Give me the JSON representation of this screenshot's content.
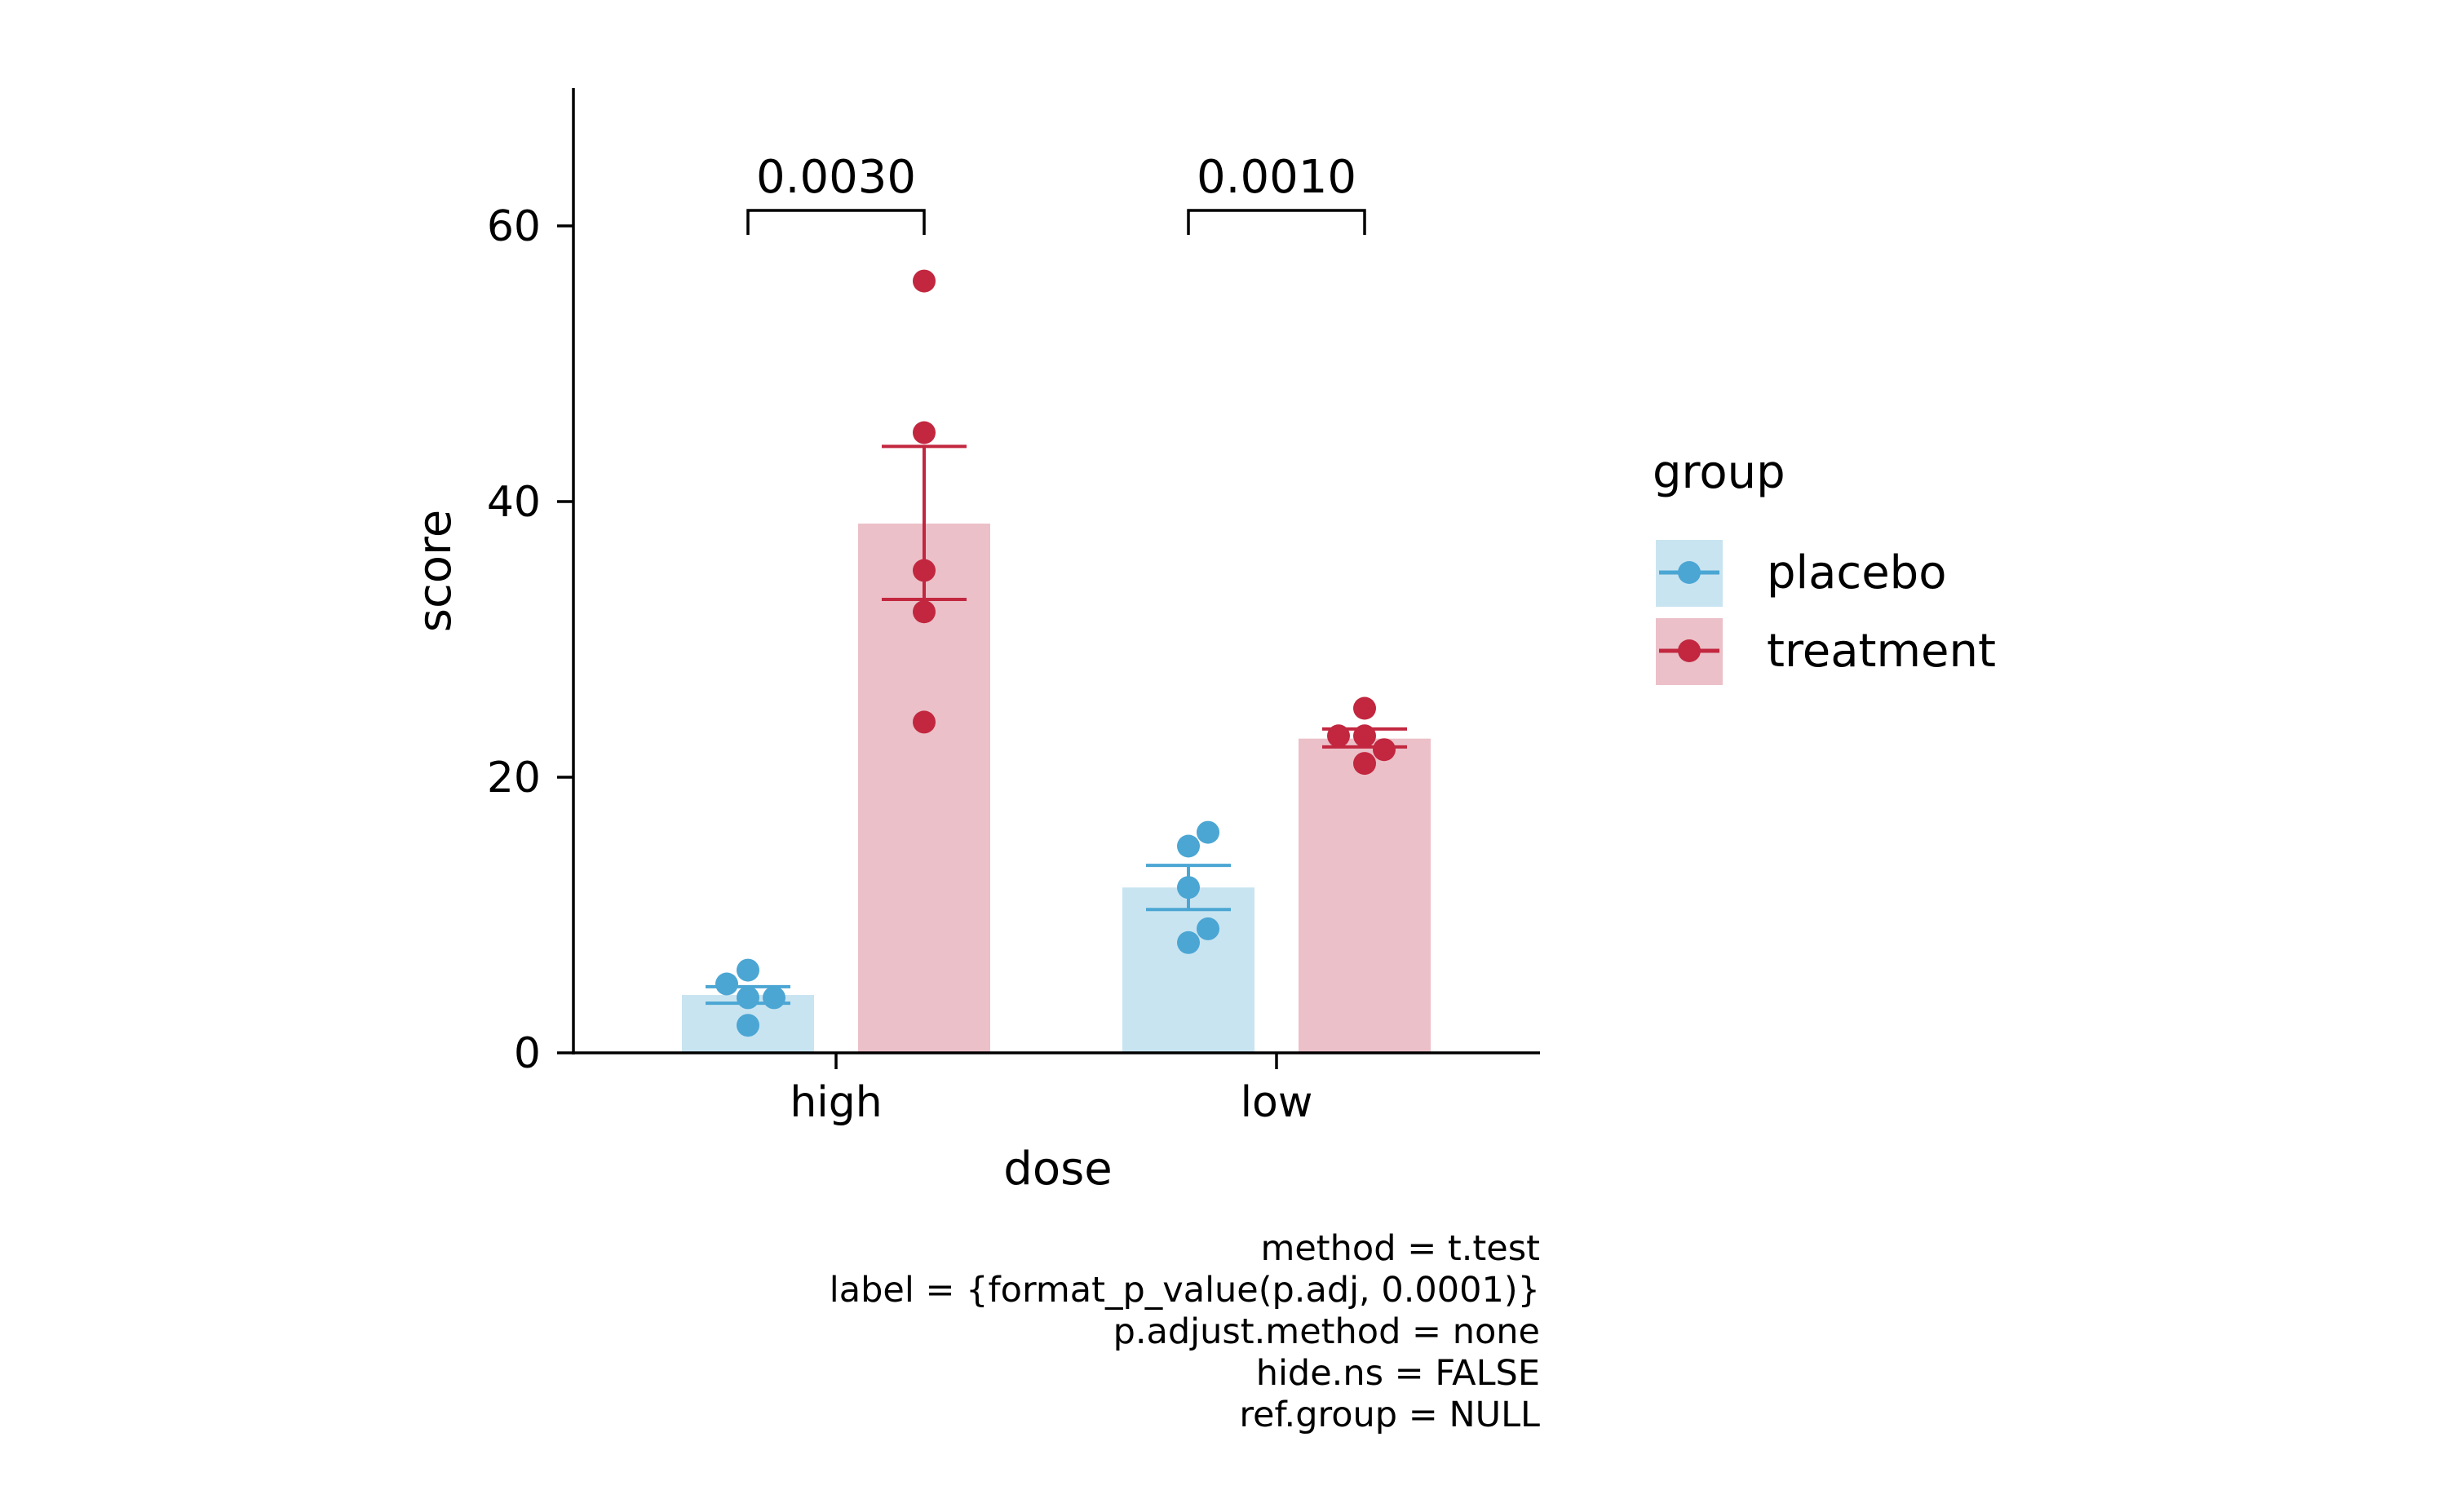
{
  "chart_data": {
    "type": "bar",
    "xlabel": "dose",
    "ylabel": "score",
    "ylim": [
      0,
      70
    ],
    "yticks": [
      0,
      20,
      40,
      60
    ],
    "categories": [
      "high",
      "low"
    ],
    "series": [
      {
        "name": "placebo",
        "color": "#4BA6D3",
        "bar_color": "#C9E4F1",
        "values": [
          4.2,
          12.0
        ],
        "error": [
          [
            3.6,
            4.8
          ],
          [
            10.4,
            13.6
          ]
        ],
        "points": [
          [
            5,
            6,
            2,
            4,
            4
          ],
          [
            15,
            16,
            12,
            9,
            8
          ]
        ]
      },
      {
        "name": "treatment",
        "color": "#C2273F",
        "bar_color": "#EBC0C8",
        "values": [
          38.4,
          22.8
        ],
        "error": [
          [
            32.9,
            44.0
          ],
          [
            22.2,
            23.5
          ]
        ],
        "points": [
          [
            56,
            45,
            35,
            32,
            24
          ],
          [
            25,
            23,
            23,
            22,
            21
          ]
        ]
      }
    ],
    "comparisons": [
      {
        "category": "high",
        "label": "0.0030"
      },
      {
        "category": "low",
        "label": "0.0010"
      }
    ],
    "legend": {
      "title": "group",
      "placement": "right"
    },
    "caption": [
      "method = t.test",
      "label = {format_p_value(p.adj, 0.0001)}",
      "p.adjust.method = none",
      "hide.ns = FALSE",
      "ref.group = NULL"
    ],
    "grid": false
  }
}
